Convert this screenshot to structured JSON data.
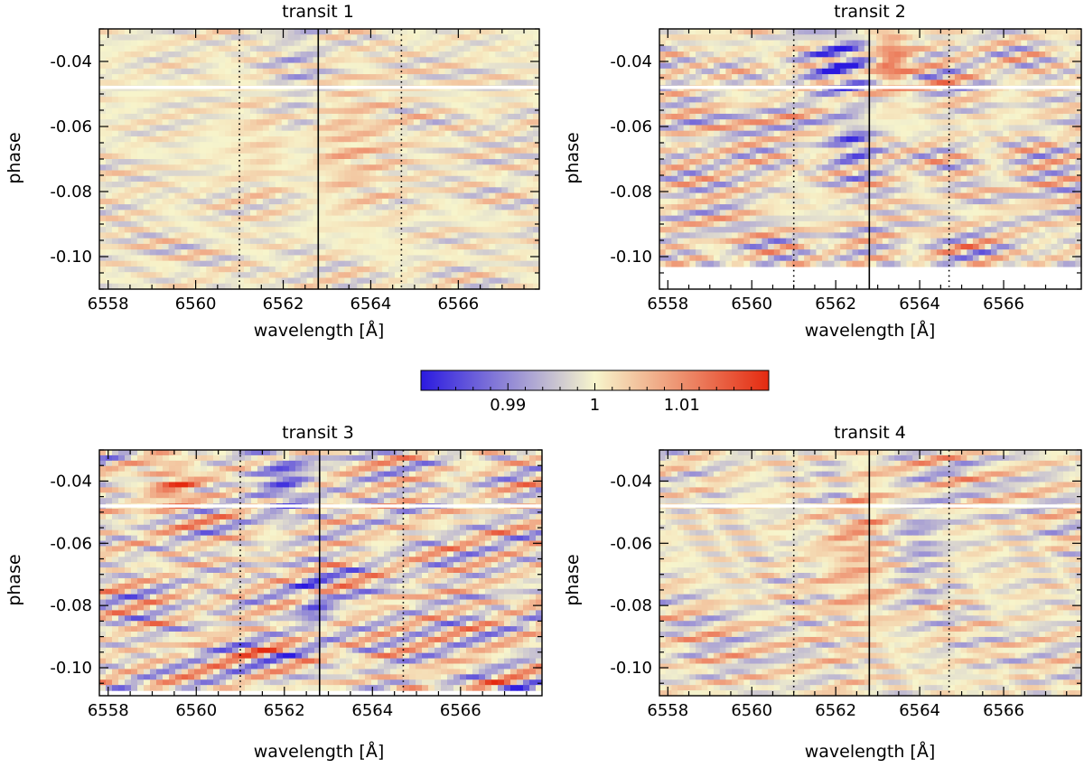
{
  "chart_data": {
    "type": "heatmap",
    "panels": [
      {
        "title": "transit 1",
        "xlabel": "wavelength [Å]",
        "ylabel": "phase",
        "xlim": [
          6557.8,
          6567.85
        ],
        "ylim": [
          -0.11,
          -0.03
        ],
        "xticks": [
          6558,
          6560,
          6562,
          6564,
          6566
        ],
        "xtick_labels": [
          "6558",
          "6560",
          "6562",
          "6564",
          "6566"
        ],
        "yticks": [
          -0.04,
          -0.06,
          -0.08,
          -0.1
        ],
        "ytick_labels": [
          "-0.04",
          "-0.06",
          "-0.08",
          "-0.10"
        ],
        "line_center": 6562.8,
        "dotted_lines": [
          6561.0,
          6564.7
        ],
        "gap_phase": -0.048,
        "data_ymin": -0.11,
        "amplitude": 0.006,
        "seed": 11,
        "blobs": [
          {
            "x": 6563.3,
            "y": -0.065,
            "sx": 1.2,
            "sy": 0.02,
            "a": 0.005
          },
          {
            "x": 6561.8,
            "y": -0.065,
            "sx": 0.8,
            "sy": 0.02,
            "a": 0.004
          },
          {
            "x": 6562.3,
            "y": -0.055,
            "sx": 0.7,
            "sy": 0.03,
            "a": -0.006
          }
        ]
      },
      {
        "title": "transit 2",
        "xlabel": "wavelength [Å]",
        "ylabel": "phase",
        "xlim": [
          6557.8,
          6567.85
        ],
        "ylim": [
          -0.11,
          -0.03
        ],
        "xticks": [
          6558,
          6560,
          6562,
          6564,
          6566
        ],
        "xtick_labels": [
          "6558",
          "6560",
          "6562",
          "6564",
          "6566"
        ],
        "yticks": [
          -0.04,
          -0.06,
          -0.08,
          -0.1
        ],
        "ytick_labels": [
          "-0.04",
          "-0.06",
          "-0.08",
          "-0.10"
        ],
        "line_center": 6562.8,
        "dotted_lines": [
          6561.0,
          6564.7
        ],
        "gap_phase": -0.048,
        "data_ymin": -0.103,
        "amplitude": 0.011,
        "seed": 23,
        "blobs": [
          {
            "x": 6562.2,
            "y": -0.04,
            "sx": 0.7,
            "sy": 0.01,
            "a": -0.012
          },
          {
            "x": 6563.3,
            "y": -0.04,
            "sx": 0.5,
            "sy": 0.01,
            "a": 0.012
          },
          {
            "x": 6562.4,
            "y": -0.065,
            "sx": 0.5,
            "sy": 0.008,
            "a": -0.01
          }
        ]
      },
      {
        "title": "transit 3",
        "xlabel": "wavelength [Å]",
        "ylabel": "phase",
        "xlim": [
          6557.8,
          6567.85
        ],
        "ylim": [
          -0.109,
          -0.03
        ],
        "xticks": [
          6558,
          6560,
          6562,
          6564,
          6566
        ],
        "xtick_labels": [
          "6558",
          "6560",
          "6562",
          "6564",
          "6566"
        ],
        "yticks": [
          -0.04,
          -0.06,
          -0.08,
          -0.1
        ],
        "ytick_labels": [
          "-0.04",
          "-0.06",
          "-0.08",
          "-0.10"
        ],
        "line_center": 6562.8,
        "dotted_lines": [
          6561.0,
          6564.7
        ],
        "gap_phase": -0.048,
        "data_ymin": -0.1065,
        "amplitude": 0.013,
        "seed": 37,
        "blobs": [
          {
            "x": 6562.0,
            "y": -0.04,
            "sx": 0.6,
            "sy": 0.012,
            "a": -0.011
          },
          {
            "x": 6559.5,
            "y": -0.042,
            "sx": 0.6,
            "sy": 0.008,
            "a": 0.01
          },
          {
            "x": 6562.7,
            "y": -0.08,
            "sx": 0.4,
            "sy": 0.01,
            "a": -0.009
          }
        ]
      },
      {
        "title": "transit 4",
        "xlabel": "wavelength [Å]",
        "ylabel": "phase",
        "xlim": [
          6557.8,
          6567.85
        ],
        "ylim": [
          -0.109,
          -0.03
        ],
        "xticks": [
          6558,
          6560,
          6562,
          6564,
          6566
        ],
        "xtick_labels": [
          "6558",
          "6560",
          "6562",
          "6564",
          "6566"
        ],
        "yticks": [
          -0.04,
          -0.06,
          -0.08,
          -0.1
        ],
        "ytick_labels": [
          "-0.04",
          "-0.06",
          "-0.08",
          "-0.10"
        ],
        "line_center": 6562.8,
        "dotted_lines": [
          6561.0,
          6564.7
        ],
        "gap_phase": -0.048,
        "data_ymin": -0.109,
        "amplitude": 0.008,
        "seed": 53,
        "blobs": [
          {
            "x": 6562.5,
            "y": -0.06,
            "sx": 0.8,
            "sy": 0.03,
            "a": 0.006
          },
          {
            "x": 6564.0,
            "y": -0.06,
            "sx": 0.6,
            "sy": 0.015,
            "a": -0.006
          },
          {
            "x": 6562.0,
            "y": -0.04,
            "sx": 0.5,
            "sy": 0.01,
            "a": -0.005
          }
        ]
      }
    ],
    "colorbar": {
      "vmin": 0.98,
      "vmax": 1.02,
      "ticks": [
        0.99,
        1.0,
        1.01
      ],
      "tick_labels": [
        "0.99",
        "1",
        "1.01"
      ],
      "minor_step": 0.002,
      "colors": [
        "#2b1ae0",
        "#f7f5cc",
        "#e42a10"
      ]
    }
  }
}
